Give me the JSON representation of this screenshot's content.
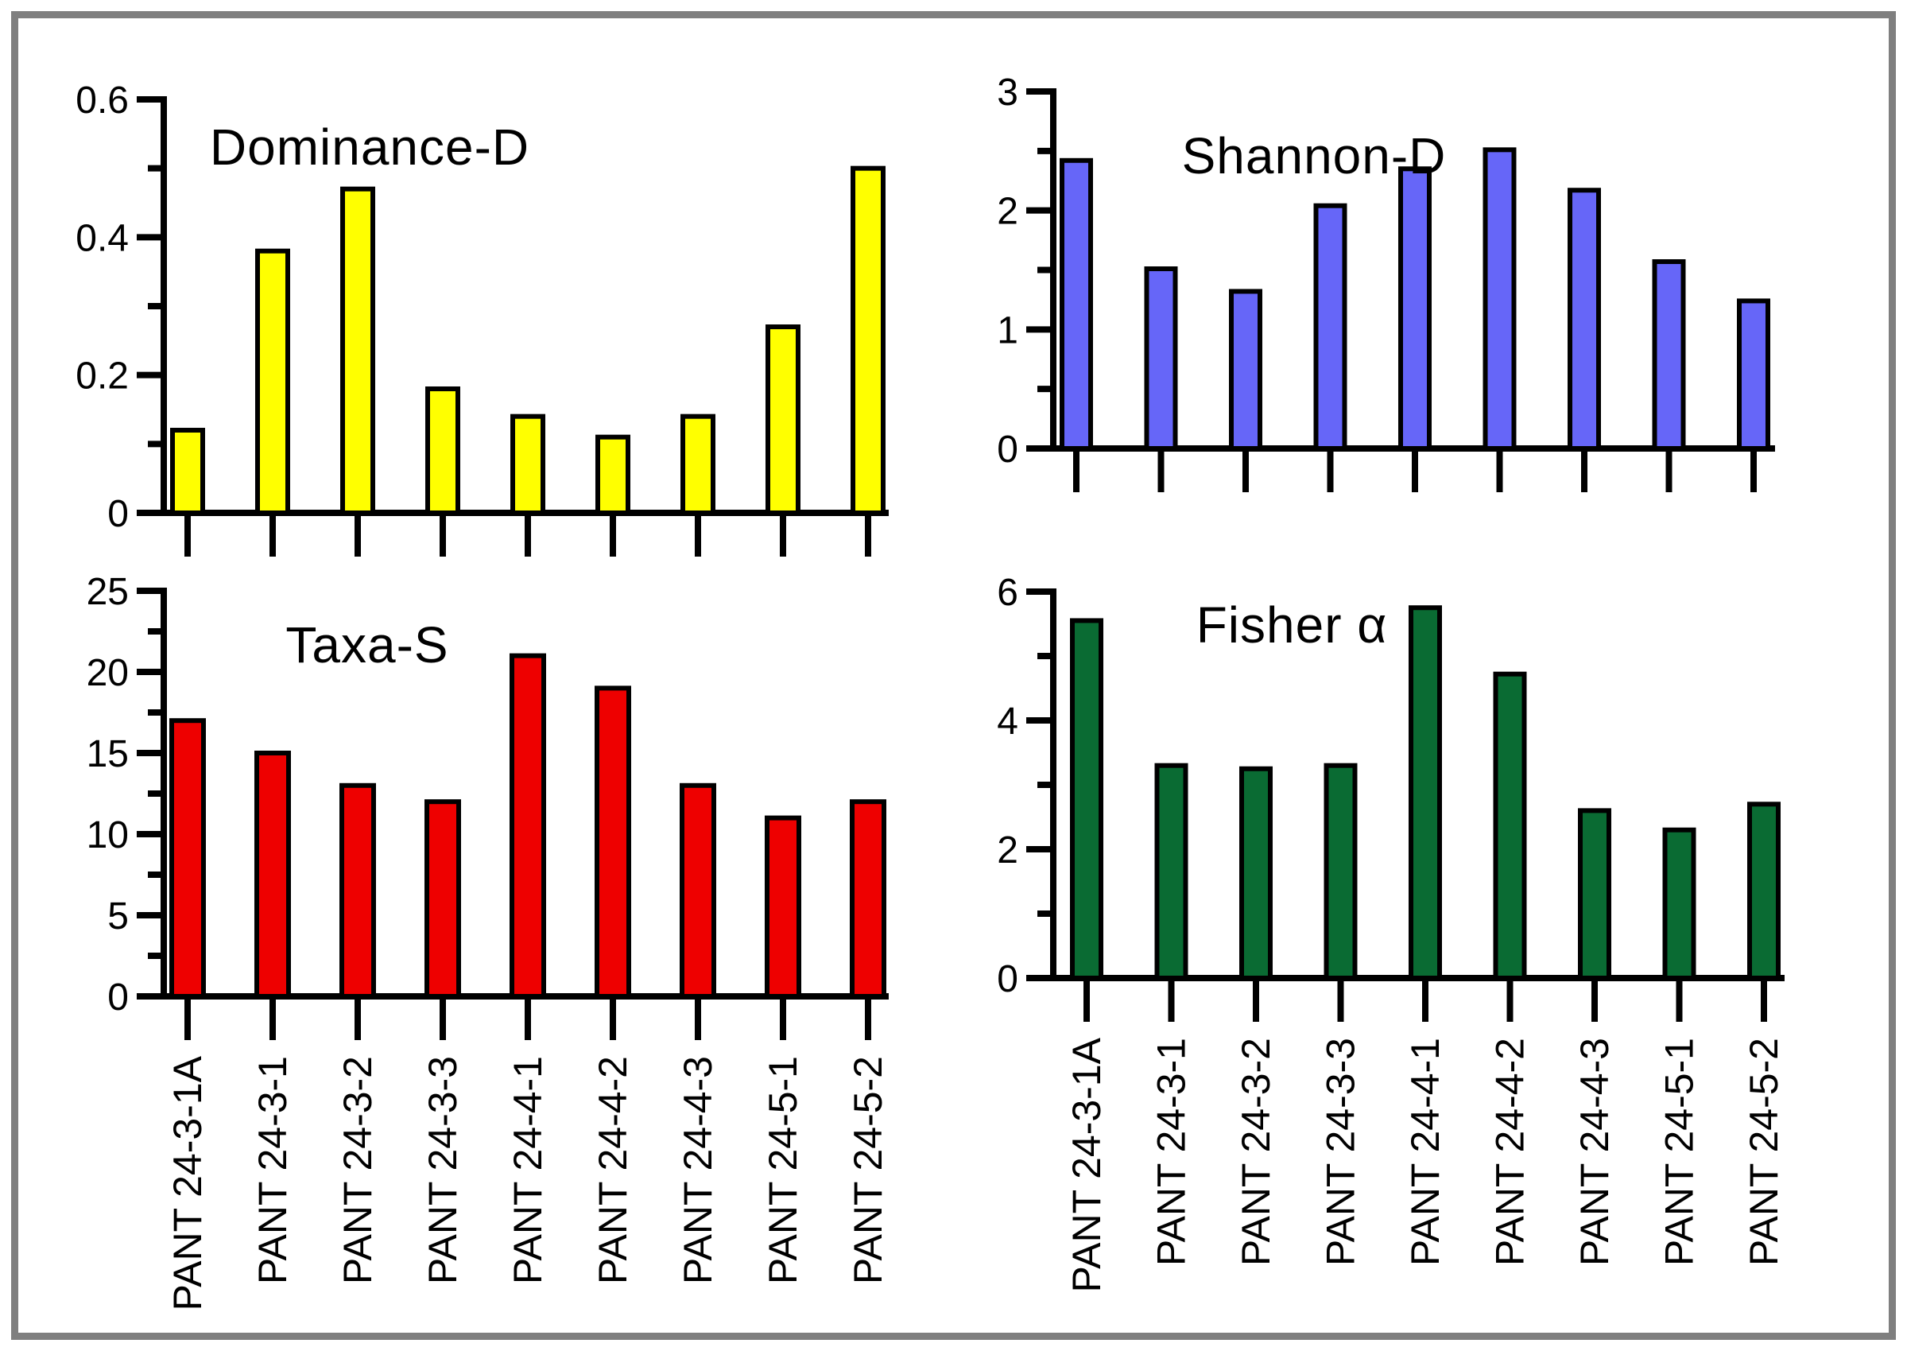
{
  "figure": {
    "background_color": "#ffffff",
    "border_color": "#7f7f7f",
    "text_color": "#000000",
    "bar_outline_color": "#000000"
  },
  "categories": [
    "PANT 24-3-1A",
    "PANT 24-3-1",
    "PANT 24-3-2",
    "PANT 24-3-3",
    "PANT 24-4-1",
    "PANT 24-4-2",
    "PANT 24-4-3",
    "PANT 24-5-1",
    "PANT 24-5-2"
  ],
  "chart_data": [
    {
      "type": "bar",
      "title": "Dominance-D",
      "bar_color": "#ffff00",
      "ylim": [
        0,
        0.6
      ],
      "yticks": [
        0,
        0.2,
        0.4,
        0.6
      ],
      "ytick_labels": [
        "0",
        "0.2",
        "0.4",
        "0.6"
      ],
      "yticks_minor": [
        0.1,
        0.3,
        0.5
      ],
      "x_tick_labels_visible": false,
      "grid": false,
      "categories": [
        "PANT 24-3-1A",
        "PANT 24-3-1",
        "PANT 24-3-2",
        "PANT 24-3-3",
        "PANT 24-4-1",
        "PANT 24-4-2",
        "PANT 24-4-3",
        "PANT 24-5-1",
        "PANT 24-5-2"
      ],
      "values": [
        0.12,
        0.38,
        0.47,
        0.18,
        0.14,
        0.11,
        0.14,
        0.27,
        0.5
      ]
    },
    {
      "type": "bar",
      "title": "Shannon-D",
      "bar_color": "#6666f8",
      "ylim": [
        0,
        3
      ],
      "yticks": [
        0,
        1,
        2,
        3
      ],
      "ytick_labels": [
        "0",
        "1",
        "2",
        "3"
      ],
      "yticks_minor": [
        0.5,
        1.5,
        2.5
      ],
      "x_tick_labels_visible": false,
      "grid": false,
      "categories": [
        "PANT 24-3-1A",
        "PANT 24-3-1",
        "PANT 24-3-2",
        "PANT 24-3-3",
        "PANT 24-4-1",
        "PANT 24-4-2",
        "PANT 24-4-3",
        "PANT 24-5-1",
        "PANT 24-5-2"
      ],
      "values": [
        2.42,
        1.51,
        1.32,
        2.04,
        2.35,
        2.51,
        2.17,
        1.57,
        1.24
      ]
    },
    {
      "type": "bar",
      "title": "Taxa-S",
      "bar_color": "#ee0000",
      "ylim": [
        0,
        25
      ],
      "yticks": [
        0,
        5,
        10,
        15,
        20,
        25
      ],
      "ytick_labels": [
        "0",
        "5",
        "10",
        "15",
        "20",
        "25"
      ],
      "yticks_minor": [
        2.5,
        7.5,
        12.5,
        17.5,
        22.5
      ],
      "x_tick_labels_visible": true,
      "grid": false,
      "categories": [
        "PANT 24-3-1A",
        "PANT 24-3-1",
        "PANT 24-3-2",
        "PANT 24-3-3",
        "PANT 24-4-1",
        "PANT 24-4-2",
        "PANT 24-4-3",
        "PANT 24-5-1",
        "PANT 24-5-2"
      ],
      "values": [
        17,
        15,
        13,
        12,
        21,
        19,
        13,
        11,
        12
      ]
    },
    {
      "type": "bar",
      "title": "Fisher α",
      "bar_color": "#0a6b33",
      "ylim": [
        0,
        6
      ],
      "yticks": [
        0,
        2,
        4,
        6
      ],
      "ytick_labels": [
        "0",
        "2",
        "4",
        "6"
      ],
      "yticks_minor": [
        1,
        3,
        5
      ],
      "x_tick_labels_visible": true,
      "grid": false,
      "categories": [
        "PANT 24-3-1A",
        "PANT 24-3-1",
        "PANT 24-3-2",
        "PANT 24-3-3",
        "PANT 24-4-1",
        "PANT 24-4-2",
        "PANT 24-4-3",
        "PANT 24-5-1",
        "PANT 24-5-2"
      ],
      "values": [
        5.55,
        3.3,
        3.25,
        3.3,
        5.75,
        4.72,
        2.6,
        2.3,
        2.7
      ]
    }
  ]
}
